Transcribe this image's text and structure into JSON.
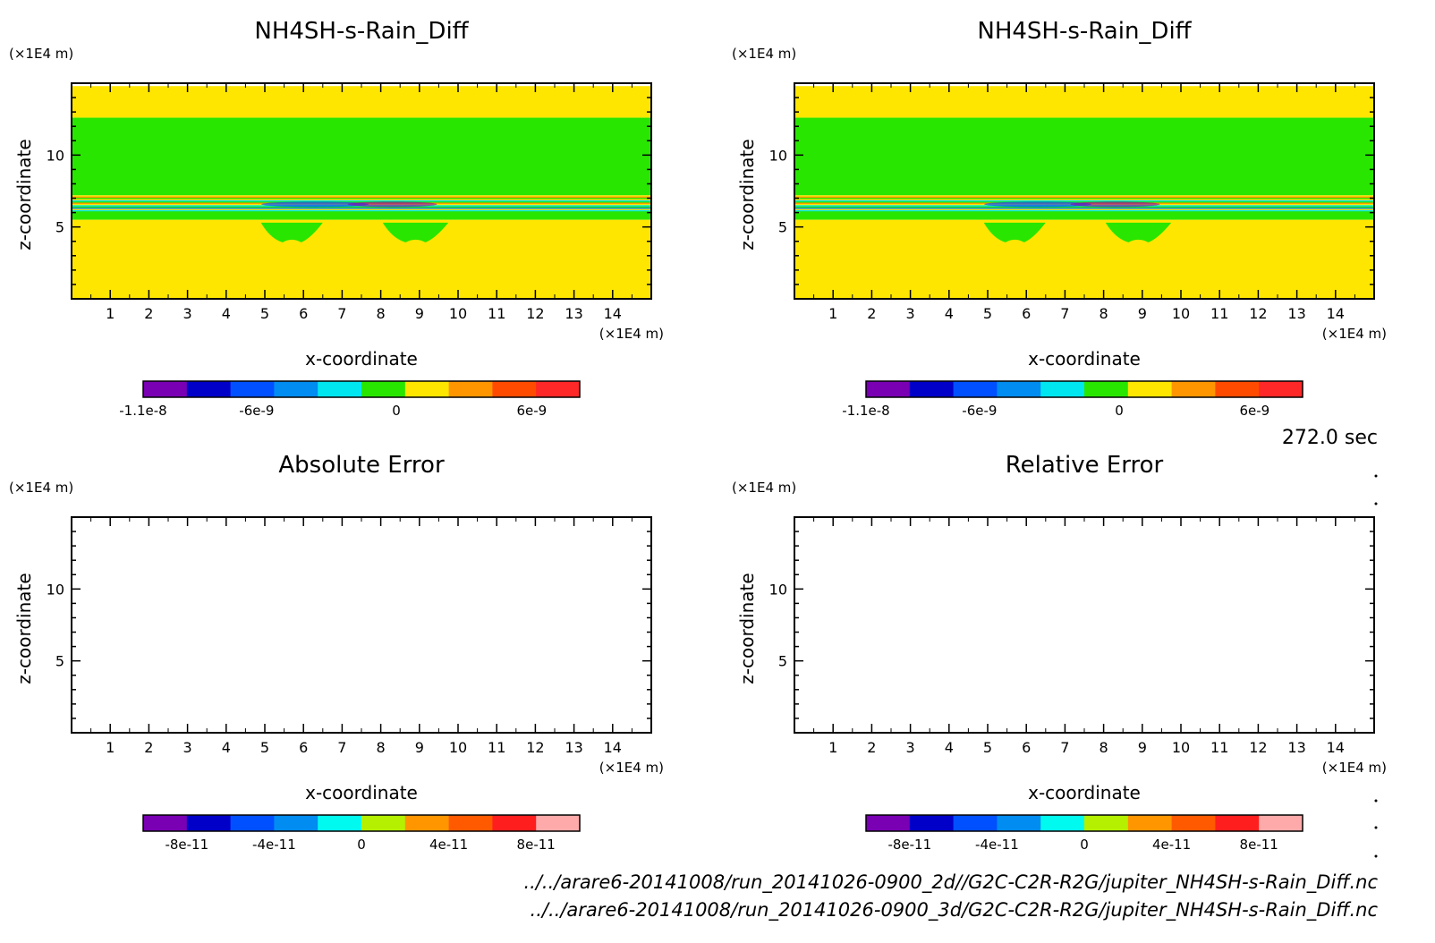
{
  "time_label": "272.0 sec",
  "file_paths": [
    "../../arare6-20141008/run_20141026-0900_2d//G2C-C2R-R2G/jupiter_NH4SH-s-Rain_Diff.nc",
    "../../arare6-20141008/run_20141026-0900_3d/G2C-C2R-R2G/jupiter_NH4SH-s-Rain_Diff.nc"
  ],
  "chart_data": [
    {
      "type": "heatmap",
      "title": "NH4SH-s-Rain_Diff",
      "xlabel": "x-coordinate",
      "ylabel": "z-coordinate",
      "x_unit": "(×1E4 m)",
      "y_unit": "(×1E4 m)",
      "xlim": [
        0,
        15
      ],
      "ylim": [
        0,
        15
      ],
      "xticks": [
        1,
        2,
        3,
        4,
        5,
        6,
        7,
        8,
        9,
        10,
        11,
        12,
        13,
        14
      ],
      "yticks": [
        5,
        10
      ],
      "background_level": "positive small (yellow)",
      "bands": [
        {
          "z_from": 12.6,
          "z_to": 14.8,
          "color": "#ffe600"
        },
        {
          "z_from": 7.2,
          "z_to": 12.6,
          "color": "#28e600"
        },
        {
          "z_from": 6.0,
          "z_to": 7.2,
          "color": "mixed thin layers"
        },
        {
          "z_from": 5.5,
          "z_to": 6.0,
          "color": "#28e600"
        },
        {
          "z_from": 0,
          "z_to": 5.5,
          "color": "#ffe600"
        }
      ],
      "colorbar": {
        "colors": [
          "#7a00b4",
          "#0000c8",
          "#0050ff",
          "#008cf0",
          "#00e6f0",
          "#28e600",
          "#ffe600",
          "#ff9600",
          "#ff4b00",
          "#ff2828"
        ],
        "tick_labels": [
          "-1.1e-8",
          "-6e-9",
          "0",
          "6e-9"
        ]
      }
    },
    {
      "type": "heatmap",
      "title": "NH4SH-s-Rain_Diff",
      "xlabel": "x-coordinate",
      "ylabel": "z-coordinate",
      "x_unit": "(×1E4 m)",
      "y_unit": "(×1E4 m)",
      "xlim": [
        0,
        15
      ],
      "ylim": [
        0,
        15
      ],
      "xticks": [
        1,
        2,
        3,
        4,
        5,
        6,
        7,
        8,
        9,
        10,
        11,
        12,
        13,
        14
      ],
      "yticks": [
        5,
        10
      ],
      "bands": [
        {
          "z_from": 12.6,
          "z_to": 14.8,
          "color": "#ffe600"
        },
        {
          "z_from": 7.2,
          "z_to": 12.6,
          "color": "#28e600"
        },
        {
          "z_from": 6.0,
          "z_to": 7.2,
          "color": "mixed thin layers"
        },
        {
          "z_from": 5.5,
          "z_to": 6.0,
          "color": "#28e600"
        },
        {
          "z_from": 0,
          "z_to": 5.5,
          "color": "#ffe600"
        }
      ],
      "colorbar": {
        "colors": [
          "#7a00b4",
          "#0000c8",
          "#0050ff",
          "#008cf0",
          "#00e6f0",
          "#28e600",
          "#ffe600",
          "#ff9600",
          "#ff4b00",
          "#ff2828"
        ],
        "tick_labels": [
          "-1.1e-8",
          "-6e-9",
          "0",
          "6e-9"
        ]
      }
    },
    {
      "type": "heatmap",
      "title": "Absolute Error",
      "xlabel": "x-coordinate",
      "ylabel": "z-coordinate",
      "x_unit": "(×1E4 m)",
      "y_unit": "(×1E4 m)",
      "xlim": [
        0,
        15
      ],
      "ylim": [
        0,
        15
      ],
      "xticks": [
        1,
        2,
        3,
        4,
        5,
        6,
        7,
        8,
        9,
        10,
        11,
        12,
        13,
        14
      ],
      "yticks": [
        5,
        10
      ],
      "bands": [],
      "colorbar": {
        "colors": [
          "#7a00b4",
          "#0000c8",
          "#0050ff",
          "#008cf0",
          "#00faf0",
          "#b4f000",
          "#ff9600",
          "#ff5a00",
          "#ff1e1e",
          "#ffaaaa"
        ],
        "tick_labels": [
          "-8e-11",
          "-4e-11",
          "0",
          "4e-11",
          "8e-11"
        ]
      }
    },
    {
      "type": "heatmap",
      "title": "Relative Error",
      "xlabel": "x-coordinate",
      "ylabel": "z-coordinate",
      "x_unit": "(×1E4 m)",
      "y_unit": "(×1E4 m)",
      "xlim": [
        0,
        15
      ],
      "ylim": [
        0,
        15
      ],
      "xticks": [
        1,
        2,
        3,
        4,
        5,
        6,
        7,
        8,
        9,
        10,
        11,
        12,
        13,
        14
      ],
      "yticks": [
        5,
        10
      ],
      "bands": [],
      "colorbar": {
        "colors": [
          "#7a00b4",
          "#0000c8",
          "#0050ff",
          "#008cf0",
          "#00faf0",
          "#b4f000",
          "#ff9600",
          "#ff5a00",
          "#ff1e1e",
          "#ffaaaa"
        ],
        "tick_labels": [
          "-8e-11",
          "-4e-11",
          "0",
          "4e-11",
          "8e-11"
        ]
      }
    }
  ]
}
